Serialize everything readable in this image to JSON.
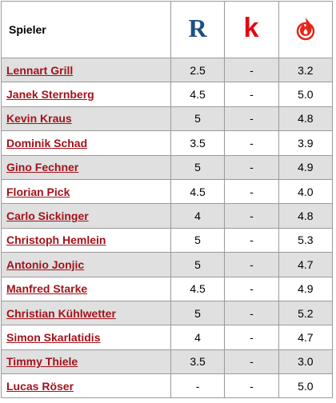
{
  "header": {
    "name_label": "Spieler",
    "icons": [
      {
        "name": "r-logo-icon",
        "glyph": "R",
        "color": "#1d4f86"
      },
      {
        "name": "k-logo-icon",
        "glyph": "k",
        "color": "#e30613"
      },
      {
        "name": "fire-logo-icon",
        "color": "#e32619"
      }
    ]
  },
  "rows": [
    {
      "name": "Lennart Grill",
      "r": "2.5",
      "k": "-",
      "f": "3.2"
    },
    {
      "name": "Janek Sternberg",
      "r": "4.5",
      "k": "-",
      "f": "5.0"
    },
    {
      "name": "Kevin Kraus",
      "r": "5",
      "k": "-",
      "f": "4.8"
    },
    {
      "name": "Dominik Schad",
      "r": "3.5",
      "k": "-",
      "f": "3.9"
    },
    {
      "name": "Gino Fechner",
      "r": "5",
      "k": "-",
      "f": "4.9"
    },
    {
      "name": "Florian Pick",
      "r": "4.5",
      "k": "-",
      "f": "4.0"
    },
    {
      "name": "Carlo Sickinger",
      "r": "4",
      "k": "-",
      "f": "4.8"
    },
    {
      "name": "Christoph Hemlein",
      "r": "5",
      "k": "-",
      "f": "5.3"
    },
    {
      "name": "Antonio Jonjic",
      "r": "5",
      "k": "-",
      "f": "4.7"
    },
    {
      "name": "Manfred Starke",
      "r": "4.5",
      "k": "-",
      "f": "4.9"
    },
    {
      "name": "Christian Kühlwetter",
      "r": "5",
      "k": "-",
      "f": "5.2"
    },
    {
      "name": "Simon Skarlatidis",
      "r": "4",
      "k": "-",
      "f": "4.7"
    },
    {
      "name": "Timmy Thiele",
      "r": "3.5",
      "k": "-",
      "f": "3.0"
    },
    {
      "name": "Lucas Röser",
      "r": "-",
      "k": "-",
      "f": "5.0"
    }
  ]
}
